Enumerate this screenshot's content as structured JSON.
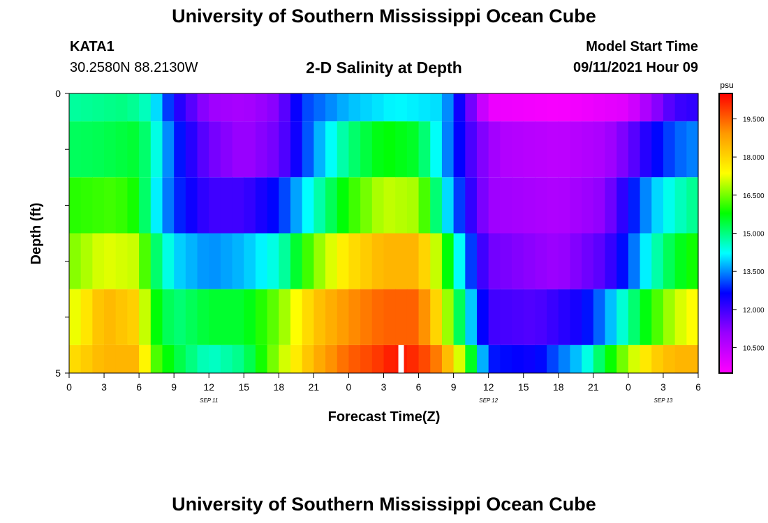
{
  "header": {
    "title": "University of Southern Mississippi Ocean Cube",
    "station_id": "KATA1",
    "station_coords": "30.2580N  88.2130W",
    "plot_title": "2-D Salinity at Depth",
    "model_start_label": "Model Start Time",
    "model_start_value": "09/11/2021 Hour 09"
  },
  "footer": {
    "title": "University of Southern Mississippi Ocean Cube"
  },
  "chart_data": {
    "type": "heatmap",
    "title": "2-D Salinity at Depth",
    "xlabel": "Forecast Time(Z)",
    "ylabel": "Depth (ft)",
    "x_tick_labels": [
      "0",
      "3",
      "6",
      "9",
      "12",
      "15",
      "18",
      "21",
      "0",
      "3",
      "6",
      "9",
      "12",
      "15",
      "18",
      "21",
      "0",
      "3",
      "6"
    ],
    "x_date_labels": [
      {
        "label": "SEP 11",
        "tick": 4
      },
      {
        "label": "SEP 12",
        "tick": 12
      },
      {
        "label": "SEP 13",
        "tick": 17
      }
    ],
    "x_hours_range": [
      0,
      54
    ],
    "y_tick_labels": [
      "0",
      "5"
    ],
    "ylim": [
      0,
      5
    ],
    "colorbar": {
      "unit": "psu",
      "tick_labels": [
        "19.500",
        "18.000",
        "16.500",
        "15.000",
        "13.500",
        "12.000",
        "10.500"
      ],
      "tick_values": [
        19.5,
        18.0,
        16.5,
        15.0,
        13.5,
        12.0,
        10.5
      ],
      "range": [
        9.5,
        20.5
      ],
      "color_stops": [
        "#ff00ff",
        "#9900ff",
        "#0000ff",
        "#00ffff",
        "#00ff00",
        "#ffff00",
        "#ff9900",
        "#ff0000"
      ]
    },
    "layers": [
      {
        "depth_range": [
          0,
          0.5
        ],
        "keyframes": [
          [
            0,
            14.8
          ],
          [
            5,
            15.0
          ],
          [
            7,
            14.5
          ],
          [
            9,
            12.5
          ],
          [
            12,
            11.0
          ],
          [
            15,
            10.8
          ],
          [
            18,
            11.3
          ],
          [
            20,
            13.0
          ],
          [
            24,
            13.8
          ],
          [
            28,
            14.2
          ],
          [
            32,
            14.0
          ],
          [
            34,
            12.0
          ],
          [
            36,
            9.8
          ],
          [
            42,
            9.6
          ],
          [
            48,
            10.0
          ],
          [
            50,
            11.0
          ],
          [
            52,
            12.0
          ],
          [
            54,
            12.2
          ]
        ]
      },
      {
        "depth_range": [
          0.5,
          1.5
        ],
        "keyframes": [
          [
            0,
            15.2
          ],
          [
            3,
            15.3
          ],
          [
            6,
            15.5
          ],
          [
            8,
            14.0
          ],
          [
            9,
            13.0
          ],
          [
            12,
            11.5
          ],
          [
            15,
            11.0
          ],
          [
            18,
            11.5
          ],
          [
            21,
            13.5
          ],
          [
            24,
            15.0
          ],
          [
            27,
            15.8
          ],
          [
            30,
            15.5
          ],
          [
            33,
            13.0
          ],
          [
            35,
            11.5
          ],
          [
            37,
            10.7
          ],
          [
            42,
            10.5
          ],
          [
            46,
            10.8
          ],
          [
            48,
            11.5
          ],
          [
            50,
            12.5
          ],
          [
            52,
            13.2
          ],
          [
            54,
            13.5
          ]
        ]
      },
      {
        "depth_range": [
          1.5,
          2.5
        ],
        "keyframes": [
          [
            0,
            16.0
          ],
          [
            4,
            16.2
          ],
          [
            6,
            15.8
          ],
          [
            7,
            14.5
          ],
          [
            9,
            13.0
          ],
          [
            12,
            12.0
          ],
          [
            15,
            12.0
          ],
          [
            18,
            12.8
          ],
          [
            21,
            14.5
          ],
          [
            24,
            16.0
          ],
          [
            27,
            17.0
          ],
          [
            30,
            16.8
          ],
          [
            32,
            14.5
          ],
          [
            34,
            12.5
          ],
          [
            36,
            11.0
          ],
          [
            42,
            10.7
          ],
          [
            46,
            11.2
          ],
          [
            48,
            12.5
          ],
          [
            50,
            13.8
          ],
          [
            52,
            14.5
          ],
          [
            54,
            15.0
          ]
        ]
      },
      {
        "depth_range": [
          2.5,
          3.5
        ],
        "keyframes": [
          [
            0,
            16.5
          ],
          [
            3,
            17.2
          ],
          [
            6,
            17.0
          ],
          [
            7,
            15.5
          ],
          [
            9,
            14.0
          ],
          [
            12,
            13.5
          ],
          [
            15,
            13.8
          ],
          [
            18,
            14.5
          ],
          [
            21,
            16.5
          ],
          [
            24,
            17.8
          ],
          [
            27,
            18.5
          ],
          [
            30,
            18.5
          ],
          [
            32,
            16.5
          ],
          [
            34,
            13.5
          ],
          [
            36,
            11.5
          ],
          [
            42,
            11.0
          ],
          [
            46,
            11.8
          ],
          [
            48,
            13.0
          ],
          [
            50,
            14.5
          ],
          [
            52,
            15.5
          ],
          [
            54,
            16.0
          ]
        ]
      },
      {
        "depth_range": [
          3.5,
          4.5
        ],
        "keyframes": [
          [
            0,
            17.0
          ],
          [
            3,
            18.5
          ],
          [
            6,
            18.0
          ],
          [
            7,
            16.0
          ],
          [
            9,
            15.0
          ],
          [
            12,
            15.5
          ],
          [
            15,
            15.5
          ],
          [
            18,
            16.5
          ],
          [
            21,
            18.2
          ],
          [
            24,
            19.0
          ],
          [
            27,
            19.5
          ],
          [
            30,
            19.5
          ],
          [
            32,
            17.5
          ],
          [
            34,
            14.5
          ],
          [
            36,
            12.0
          ],
          [
            40,
            11.8
          ],
          [
            44,
            12.5
          ],
          [
            46,
            13.5
          ],
          [
            48,
            14.8
          ],
          [
            50,
            16.0
          ],
          [
            52,
            17.0
          ],
          [
            54,
            17.5
          ]
        ]
      },
      {
        "depth_range": [
          4.5,
          5.0
        ],
        "keyframes": [
          [
            0,
            17.8
          ],
          [
            3,
            18.5
          ],
          [
            6,
            18.5
          ],
          [
            7,
            16.5
          ],
          [
            9,
            15.5
          ],
          [
            12,
            14.5
          ],
          [
            15,
            15.0
          ],
          [
            18,
            16.8
          ],
          [
            21,
            18.5
          ],
          [
            24,
            19.5
          ],
          [
            26,
            19.8
          ],
          [
            28,
            20.3
          ],
          [
            30,
            20.0
          ],
          [
            32,
            19.0
          ],
          [
            34,
            16.5
          ],
          [
            36,
            12.8
          ],
          [
            40,
            12.5
          ],
          [
            44,
            14.0
          ],
          [
            46,
            15.5
          ],
          [
            48,
            16.8
          ],
          [
            50,
            18.0
          ],
          [
            52,
            18.5
          ],
          [
            54,
            18.5
          ]
        ]
      }
    ],
    "gap_hour": 28.5
  }
}
